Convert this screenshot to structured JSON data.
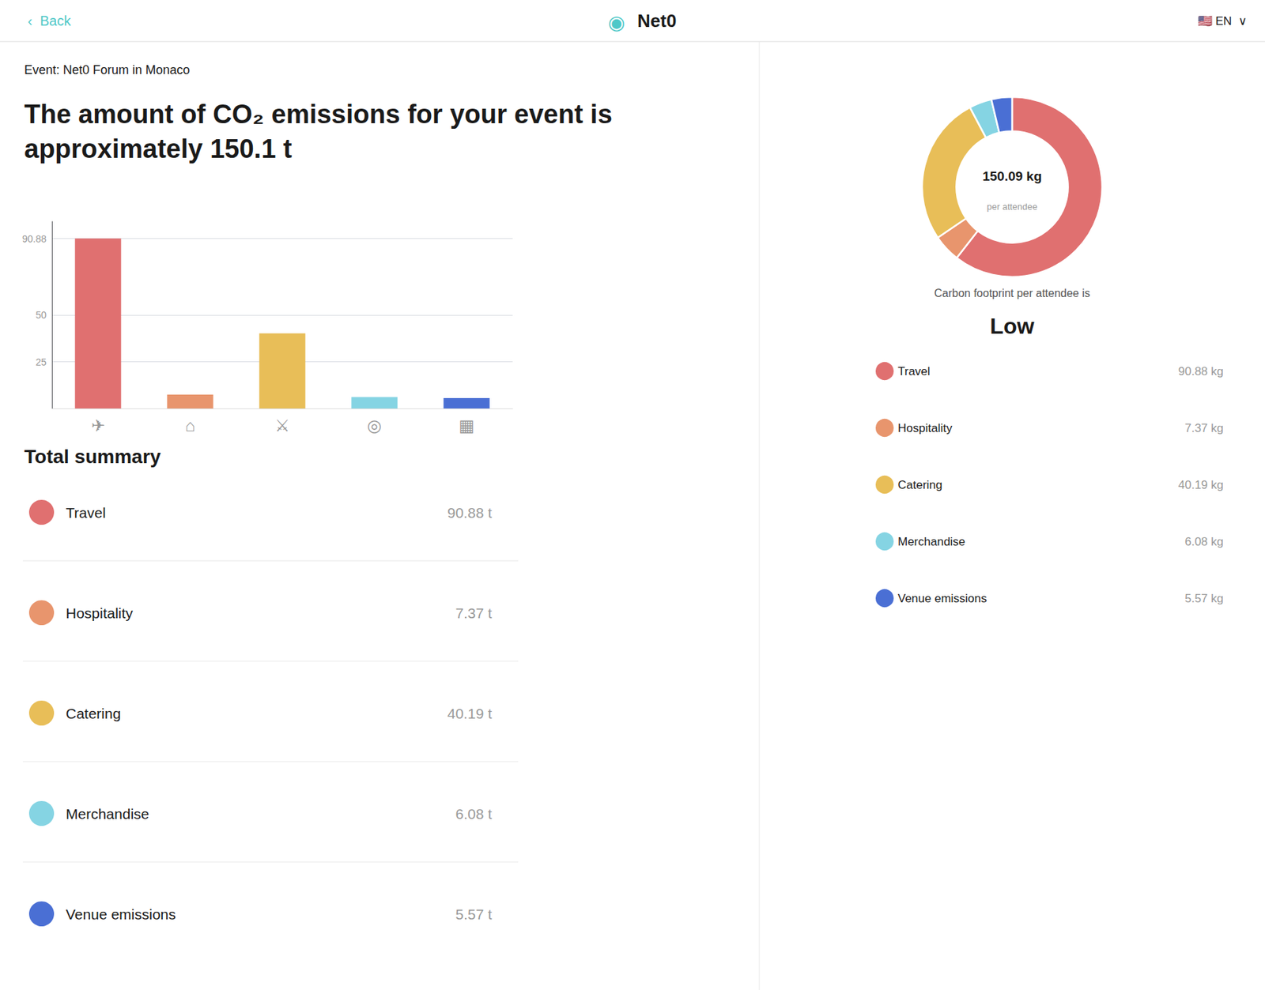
{
  "chart_data": [
    {
      "type": "bar",
      "title": "The amount of CO₂ emissions for your event is approximately 150.1 t",
      "subtitle": "Event: Net0 Forum in Monaco",
      "categories": [
        "✈",
        "⌂",
        "⚔",
        "◎",
        "▦"
      ],
      "values": [
        90.88,
        7.37,
        40.19,
        6.08,
        5.57
      ],
      "colors": [
        "#E07070",
        "#E8956D",
        "#E8BE58",
        "#85D4E3",
        "#4A6FD4"
      ],
      "ylim": [
        0,
        100
      ],
      "yticks": [
        25,
        50,
        90.88
      ],
      "grid": true,
      "names": [
        "Travel",
        "Hospitality",
        "Catering",
        "Merchandise",
        "Venue emissions"
      ],
      "value_labels": [
        "90.88 t",
        "7.37 t",
        "40.19 t",
        "6.08 t",
        "5.57 t"
      ],
      "annotations": [
        "‹  Back",
        "◉",
        "Net0",
        "🇺🇸 EN  ∨",
        "Total summary"
      ]
    },
    {
      "type": "donut",
      "categories": [
        "Travel",
        "Hospitality",
        "Catering",
        "Merchandise",
        "Venue emissions"
      ],
      "values": [
        90.88,
        7.37,
        40.19,
        6.08,
        5.57
      ],
      "colors": [
        "#E07070",
        "#E8956D",
        "#E8BE58",
        "#85D4E3",
        "#4A6FD4"
      ],
      "value_labels": [
        "90.88 kg",
        "7.37 kg",
        "40.19 kg",
        "6.08 kg",
        "5.57 kg"
      ],
      "legend": "bottom",
      "annotations": [
        "150.09 kg",
        "per attendee",
        "Carbon footprint per attendee is",
        "Low"
      ]
    }
  ]
}
